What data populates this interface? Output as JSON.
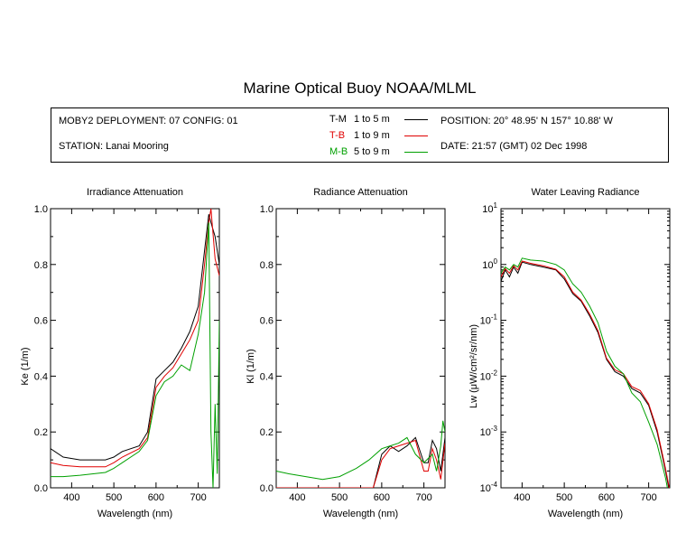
{
  "title": "Marine Optical Buoy NOAA/MLML",
  "info": {
    "deployment": "MOBY2 DEPLOYMENT: 07 CONFIG: 01",
    "station": "STATION: Lanai Mooring",
    "position": "POSITION: 20° 48.95' N   157° 10.88' W",
    "date": "DATE: 21:57 (GMT) 02 Dec 1998",
    "legend": [
      {
        "code": "T-M",
        "range": "1 to 5  m",
        "color": "#000000"
      },
      {
        "code": "T-B",
        "range": "1 to 9  m",
        "color": "#e00000"
      },
      {
        "code": "M-B",
        "range": "5 to 9  m",
        "color": "#00a000"
      }
    ]
  },
  "chart_data": [
    {
      "type": "line",
      "title": "Irradiance Attenuation",
      "xlabel": "Wavelength (nm)",
      "ylabel": "Ke  (1/m)",
      "xlim": [
        350,
        750
      ],
      "ylim": [
        0,
        1
      ],
      "xticks": [
        400,
        500,
        600,
        700
      ],
      "yticks": [
        "0.0",
        "0.2",
        "0.4",
        "0.6",
        "0.8",
        "1.0"
      ],
      "series": [
        {
          "name": "T-M",
          "color": "#000000",
          "x": [
            350,
            380,
            420,
            480,
            500,
            520,
            560,
            580,
            600,
            620,
            640,
            660,
            680,
            700,
            715,
            725,
            730,
            740,
            750
          ],
          "y": [
            0.14,
            0.11,
            0.1,
            0.1,
            0.11,
            0.13,
            0.15,
            0.2,
            0.39,
            0.42,
            0.45,
            0.5,
            0.56,
            0.65,
            0.85,
            0.98,
            0.95,
            0.9,
            0.8
          ]
        },
        {
          "name": "T-B",
          "color": "#e00000",
          "x": [
            350,
            380,
            420,
            480,
            500,
            520,
            560,
            580,
            600,
            620,
            640,
            660,
            680,
            700,
            715,
            725,
            730,
            740,
            750
          ],
          "y": [
            0.09,
            0.08,
            0.075,
            0.075,
            0.09,
            0.11,
            0.14,
            0.18,
            0.36,
            0.4,
            0.43,
            0.48,
            0.53,
            0.6,
            0.8,
            0.95,
            1.0,
            0.82,
            0.76
          ]
        },
        {
          "name": "M-B",
          "color": "#00a000",
          "x": [
            350,
            380,
            420,
            480,
            500,
            520,
            560,
            580,
            600,
            620,
            640,
            660,
            680,
            700,
            715,
            725,
            730,
            735,
            740,
            745,
            750
          ],
          "y": [
            0.04,
            0.04,
            0.045,
            0.055,
            0.07,
            0.09,
            0.13,
            0.17,
            0.33,
            0.38,
            0.4,
            0.44,
            0.42,
            0.55,
            0.7,
            0.95,
            0.2,
            0.0,
            0.3,
            0.05,
            0.6
          ]
        }
      ]
    },
    {
      "type": "line",
      "title": "Radiance Attenuation",
      "xlabel": "Wavelength (nm)",
      "ylabel": "Kl  (1/m)",
      "xlim": [
        350,
        750
      ],
      "ylim": [
        0,
        1
      ],
      "xticks": [
        400,
        500,
        600,
        700
      ],
      "yticks": [
        "0.0",
        "0.2",
        "0.4",
        "0.6",
        "0.8",
        "1.0"
      ],
      "series": [
        {
          "name": "T-M",
          "color": "#000000",
          "x": [
            350,
            370,
            400,
            450,
            500,
            550,
            580,
            600,
            620,
            640,
            660,
            680,
            700,
            710,
            720,
            730,
            740,
            750
          ],
          "y": [
            0.0,
            0.0,
            0.0,
            0.0,
            0.0,
            0.0,
            0.0,
            0.12,
            0.15,
            0.13,
            0.15,
            0.18,
            0.09,
            0.09,
            0.17,
            0.14,
            0.06,
            0.18
          ]
        },
        {
          "name": "T-B",
          "color": "#e00000",
          "x": [
            350,
            400,
            450,
            500,
            550,
            580,
            600,
            620,
            640,
            660,
            680,
            700,
            710,
            720,
            730,
            740,
            750
          ],
          "y": [
            0.0,
            0.0,
            0.0,
            0.0,
            0.0,
            0.0,
            0.1,
            0.14,
            0.15,
            0.16,
            0.17,
            0.06,
            0.06,
            0.14,
            0.1,
            0.03,
            0.16
          ]
        },
        {
          "name": "M-B",
          "color": "#00a000",
          "x": [
            350,
            380,
            420,
            460,
            500,
            540,
            570,
            600,
            620,
            640,
            660,
            680,
            700,
            720,
            730,
            740,
            745,
            750
          ],
          "y": [
            0.06,
            0.05,
            0.04,
            0.03,
            0.04,
            0.07,
            0.1,
            0.14,
            0.15,
            0.16,
            0.18,
            0.12,
            0.09,
            0.12,
            0.06,
            0.15,
            0.24,
            0.2
          ]
        }
      ]
    },
    {
      "type": "line",
      "title": "Water Leaving Radiance",
      "xlabel": "Wavelength (nm)",
      "ylabel": "Lw  (μW/cm²/sr/nm)",
      "xlim": [
        350,
        750
      ],
      "ylim": [
        0.0001,
        10
      ],
      "yscale": "log",
      "xticks": [
        400,
        500,
        600,
        700
      ],
      "yticks": [
        {
          "value": 10,
          "base": "10",
          "exp": "1"
        },
        {
          "value": 1,
          "base": "10",
          "exp": "0"
        },
        {
          "value": 0.1,
          "base": "10",
          "exp": "-1"
        },
        {
          "value": 0.01,
          "base": "10",
          "exp": "-2"
        },
        {
          "value": 0.001,
          "base": "10",
          "exp": "-3"
        },
        {
          "value": 0.0001,
          "base": "10",
          "exp": "-4"
        }
      ],
      "series": [
        {
          "name": "T-M",
          "color": "#000000",
          "x": [
            350,
            360,
            370,
            380,
            390,
            400,
            420,
            450,
            480,
            500,
            520,
            540,
            560,
            580,
            600,
            620,
            640,
            660,
            680,
            700,
            720,
            740,
            750
          ],
          "y": [
            0.5,
            0.8,
            0.6,
            0.9,
            0.7,
            1.1,
            1.0,
            0.9,
            0.8,
            0.55,
            0.3,
            0.22,
            0.12,
            0.06,
            0.02,
            0.012,
            0.01,
            0.006,
            0.005,
            0.003,
            0.001,
            0.0002,
            8e-05
          ]
        },
        {
          "name": "T-B",
          "color": "#e00000",
          "x": [
            350,
            360,
            370,
            380,
            390,
            400,
            420,
            450,
            480,
            500,
            520,
            540,
            560,
            580,
            600,
            620,
            640,
            660,
            680,
            700,
            720,
            740,
            750
          ],
          "y": [
            0.6,
            0.85,
            0.7,
            0.95,
            0.8,
            1.15,
            1.05,
            0.95,
            0.82,
            0.6,
            0.32,
            0.23,
            0.13,
            0.065,
            0.021,
            0.013,
            0.011,
            0.0065,
            0.0055,
            0.0032,
            0.0011,
            0.00022,
            9e-05
          ]
        },
        {
          "name": "M-B",
          "color": "#00a000",
          "x": [
            350,
            360,
            370,
            380,
            390,
            400,
            420,
            450,
            480,
            500,
            520,
            540,
            560,
            580,
            600,
            620,
            640,
            660,
            680,
            700,
            720,
            740,
            750
          ],
          "y": [
            0.7,
            0.9,
            0.8,
            1.0,
            0.9,
            1.3,
            1.2,
            1.15,
            1.0,
            0.8,
            0.45,
            0.32,
            0.18,
            0.09,
            0.028,
            0.015,
            0.011,
            0.005,
            0.0035,
            0.0015,
            0.0006,
            0.00015,
            6e-05
          ]
        }
      ]
    }
  ]
}
